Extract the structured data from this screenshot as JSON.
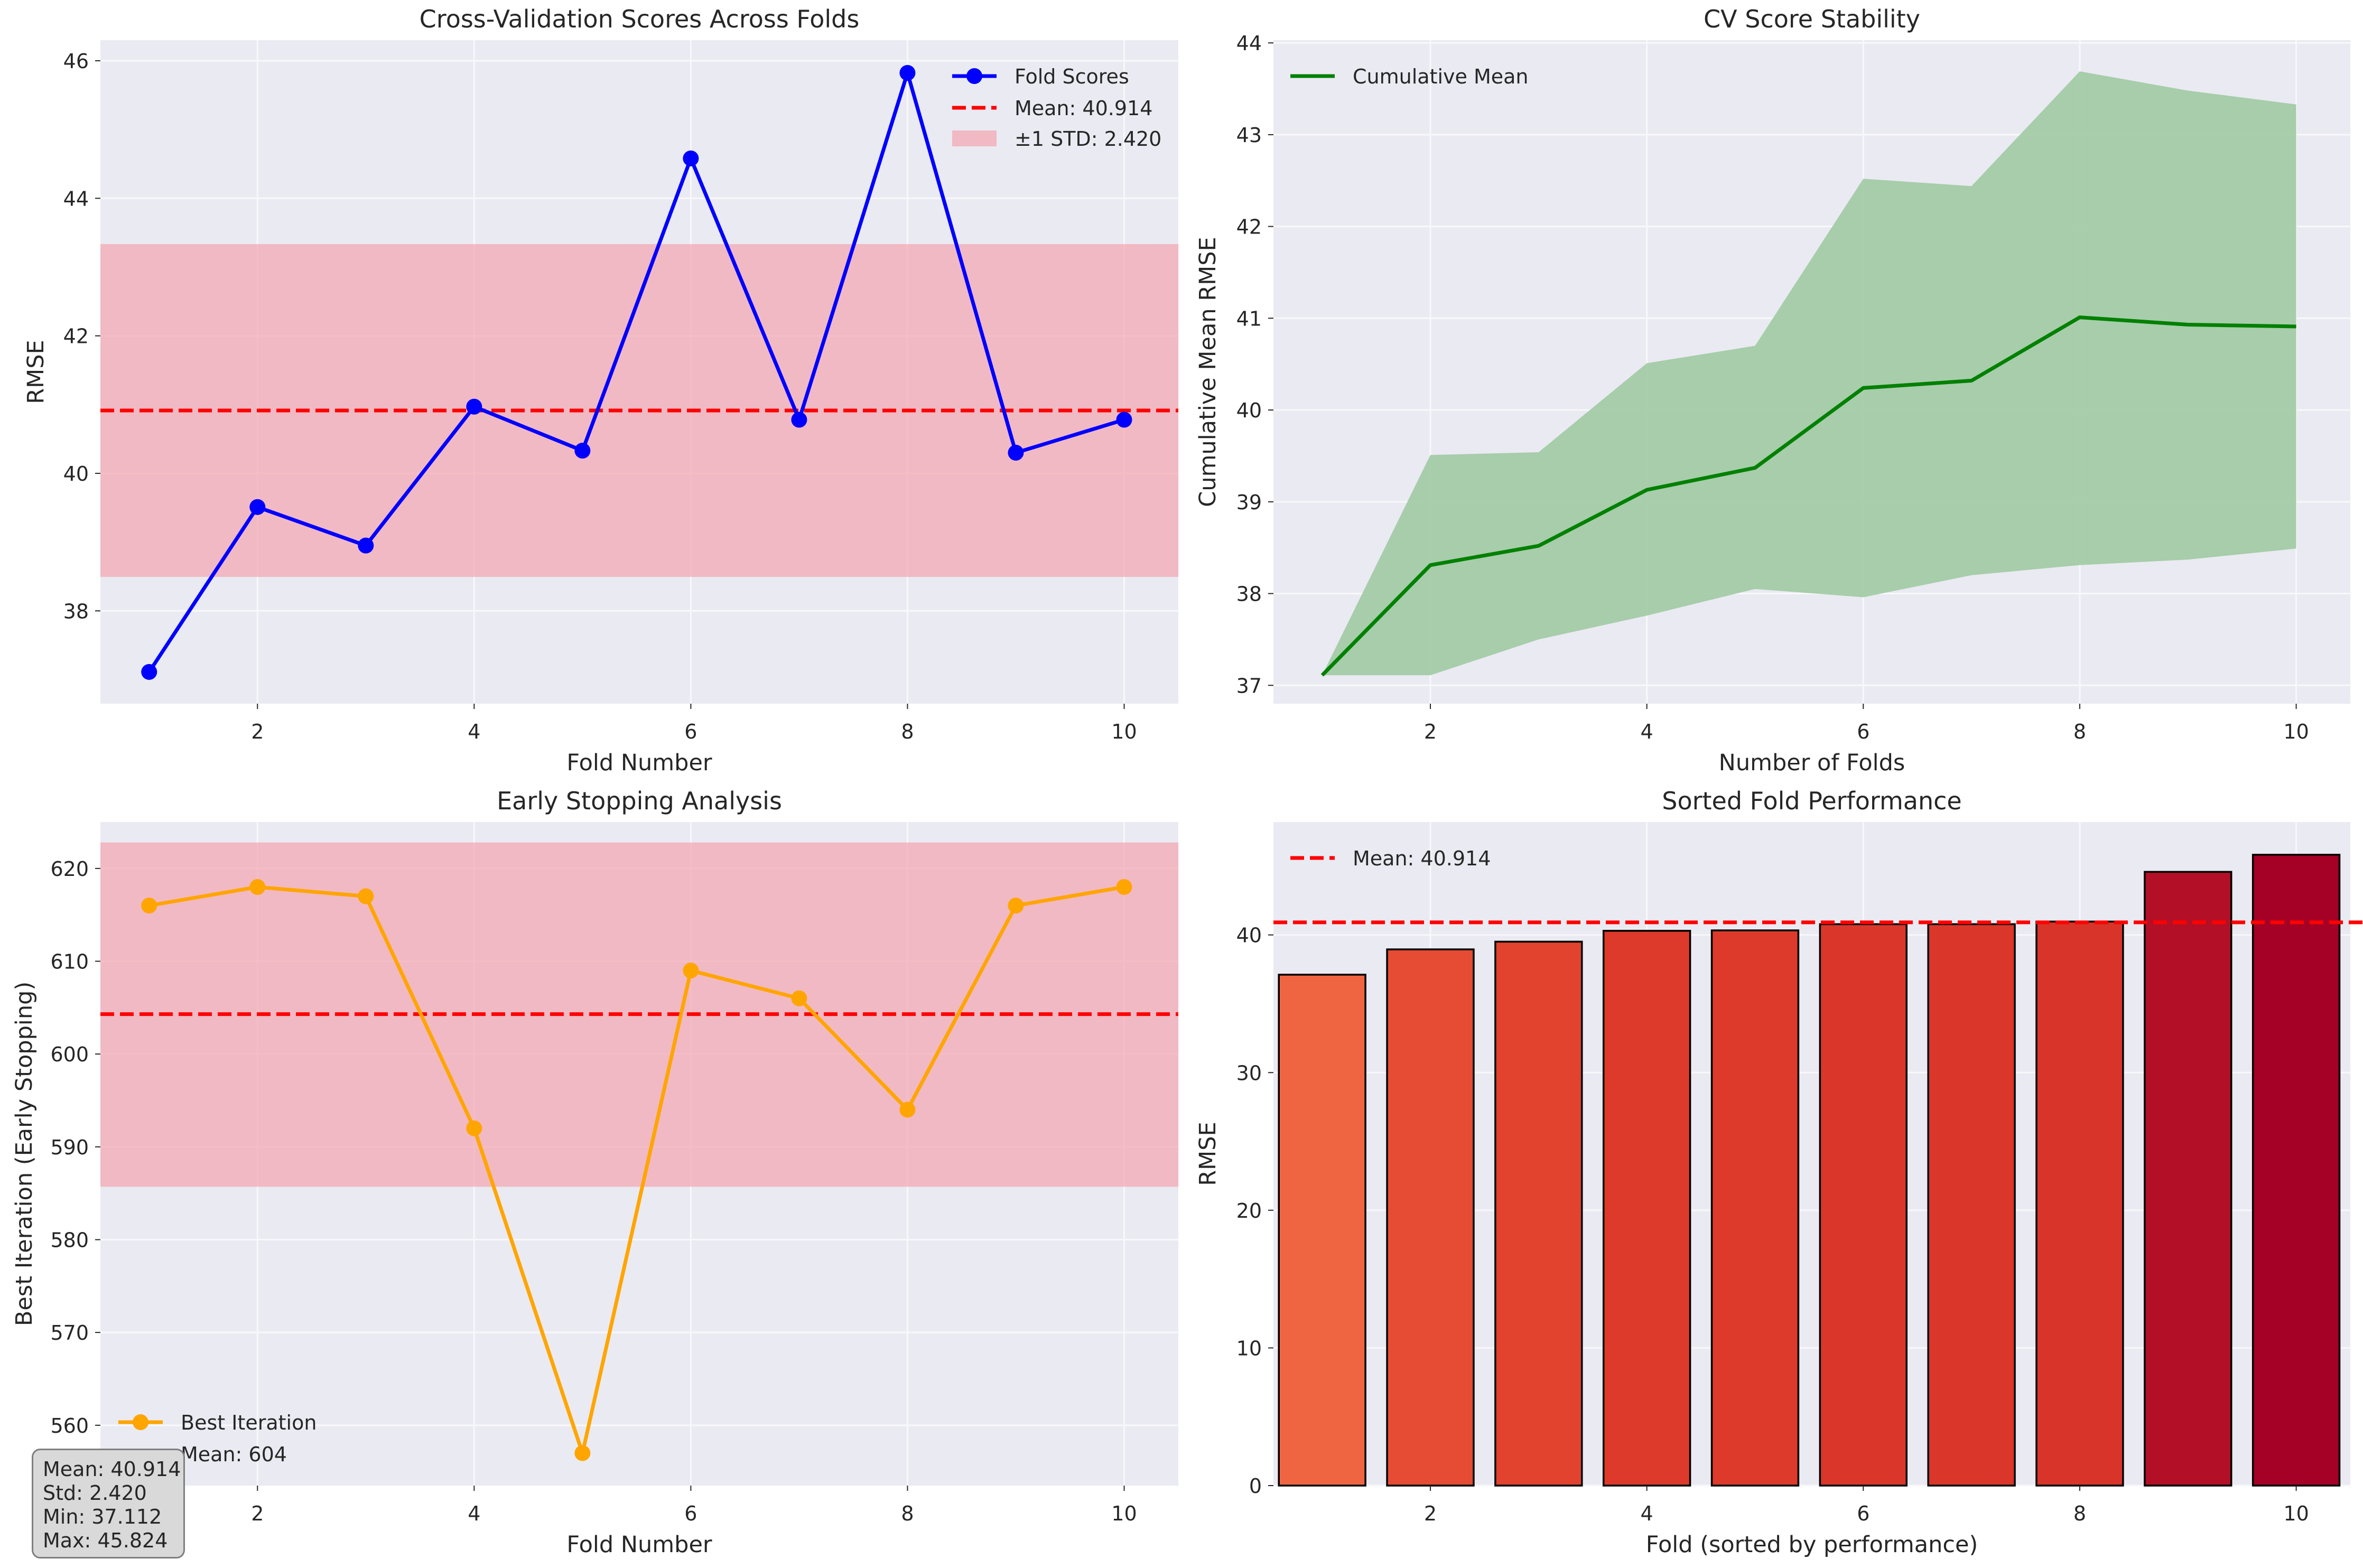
{
  "chart_data": [
    {
      "type": "line",
      "title": "Cross-Validation Scores Across Folds",
      "xlabel": "Fold Number",
      "ylabel": "RMSE",
      "x": [
        1,
        2,
        3,
        4,
        5,
        6,
        7,
        8,
        9,
        10
      ],
      "series": [
        {
          "name": "Fold Scores",
          "values": [
            37.112,
            39.51,
            38.95,
            40.97,
            40.33,
            44.58,
            40.78,
            45.824,
            40.3,
            40.78
          ],
          "color": "#0000ff"
        }
      ],
      "reference_line": {
        "name": "Mean: 40.914",
        "y": 40.914,
        "color": "#ff0000"
      },
      "band": {
        "name": "±1 STD: 2.420",
        "y0": 38.494,
        "y1": 43.334,
        "color": "#f4a6b0"
      },
      "xlim": [
        0.55,
        10.5
      ],
      "ylim": [
        36.65,
        46.3
      ],
      "xticks": [
        2,
        4,
        6,
        8,
        10
      ],
      "yticks": [
        38,
        40,
        42,
        44,
        46
      ],
      "grid": true,
      "legend_position": "top-right"
    },
    {
      "type": "area",
      "title": "CV Score Stability",
      "xlabel": "Number of Folds",
      "ylabel": "Cumulative Mean RMSE",
      "x": [
        1,
        2,
        3,
        4,
        5,
        6,
        7,
        8,
        9,
        10
      ],
      "series": [
        {
          "name": "Cumulative Mean",
          "values": [
            37.11,
            38.31,
            38.52,
            39.13,
            39.37,
            40.24,
            40.32,
            41.01,
            40.93,
            40.91
          ],
          "color": "#008000"
        }
      ],
      "band": {
        "lower": [
          37.11,
          37.11,
          37.5,
          37.76,
          38.05,
          37.96,
          38.2,
          38.31,
          38.37,
          38.49
        ],
        "upper": [
          37.11,
          39.51,
          39.54,
          40.51,
          40.7,
          42.52,
          42.44,
          43.69,
          43.48,
          43.33
        ],
        "color": "#a3cba6"
      },
      "xlim": [
        0.55,
        10.5
      ],
      "ylim": [
        36.8,
        44.03
      ],
      "xticks": [
        2,
        4,
        6,
        8,
        10
      ],
      "yticks": [
        37,
        38,
        39,
        40,
        41,
        42,
        43,
        44
      ],
      "grid": true,
      "legend_position": "top-left"
    },
    {
      "type": "line",
      "title": "Early Stopping Analysis",
      "xlabel": "Fold Number",
      "ylabel": "Best Iteration (Early Stopping)",
      "x": [
        1,
        2,
        3,
        4,
        5,
        6,
        7,
        8,
        9,
        10
      ],
      "series": [
        {
          "name": "Best Iteration",
          "values": [
            616,
            618,
            617,
            592,
            557,
            609,
            606,
            594,
            616,
            618
          ],
          "color": "#ffa500"
        }
      ],
      "reference_line": {
        "name": "Mean: 604",
        "y": 604.3,
        "color": "#ff0000"
      },
      "band": {
        "y0": 585.7,
        "y1": 622.8,
        "color": "#f4a6b0"
      },
      "xlim": [
        0.55,
        10.5
      ],
      "ylim": [
        553.5,
        625.0
      ],
      "xticks": [
        2,
        4,
        6,
        8,
        10
      ],
      "yticks": [
        560,
        570,
        580,
        590,
        600,
        610,
        620
      ],
      "grid": true,
      "legend_position": "bottom-left"
    },
    {
      "type": "bar",
      "title": "Sorted Fold Performance",
      "xlabel": "Fold (sorted by performance)",
      "ylabel": "RMSE",
      "categories": [
        1,
        2,
        3,
        4,
        5,
        6,
        7,
        8,
        9,
        10
      ],
      "values": [
        37.112,
        38.95,
        39.51,
        40.3,
        40.33,
        40.78,
        40.78,
        40.97,
        44.58,
        45.824
      ],
      "colors": [
        "#f06541",
        "#e54c33",
        "#e1432f",
        "#dd3a2b",
        "#dd3a2b",
        "#db362a",
        "#db362a",
        "#d9342a",
        "#b30f26",
        "#a50026"
      ],
      "reference_line": {
        "name": "Mean: 40.914",
        "y": 40.914,
        "color": "#ff0000"
      },
      "xlim": [
        0.55,
        10.5
      ],
      "ylim": [
        0,
        48.2
      ],
      "xticks": [
        2,
        4,
        6,
        8,
        10
      ],
      "yticks": [
        0,
        10,
        20,
        30,
        40
      ],
      "grid": true,
      "legend_position": "top-left"
    }
  ],
  "stats_box": {
    "mean": "Mean: 40.914",
    "std": "Std: 2.420",
    "min": "Min: 37.112",
    "max": "Max: 45.824"
  }
}
